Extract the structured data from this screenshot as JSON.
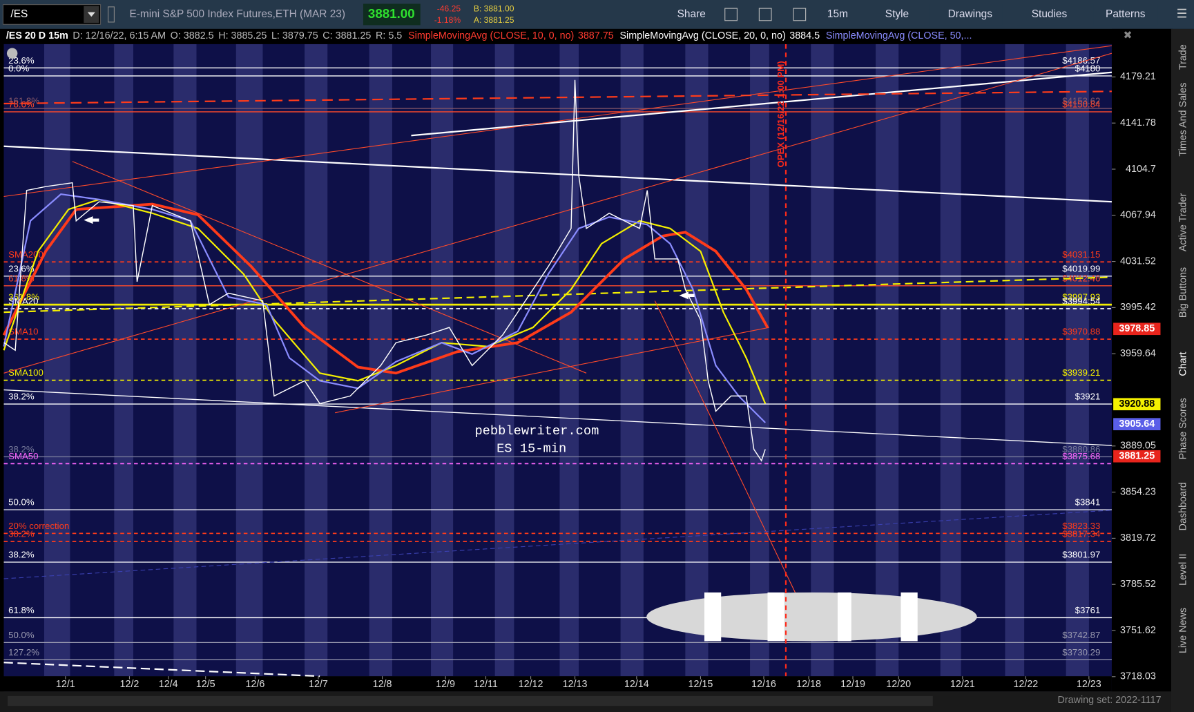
{
  "toolbar": {
    "symbol": "/ES",
    "description": "E-mini S&P 500 Index Futures,ETH (MAR 23)",
    "last": "3881.00",
    "change": "-46.25",
    "change_pct": "-1.18%",
    "bid": "B: 3881.00",
    "ask": "A: 3881.25",
    "buttons": [
      "Share",
      "15m",
      "Style",
      "Drawings",
      "Studies",
      "Patterns"
    ]
  },
  "info_bar": {
    "title": "/ES 20 D 15m",
    "fields": [
      "D: 12/16/22, 6:15 AM",
      "O: 3882.5",
      "H: 3885.25",
      "L: 3879.75",
      "C: 3881.25",
      "R: 5.5"
    ],
    "studies": [
      {
        "label": "SimpleMovingAvg (CLOSE, 10, 0, no)",
        "value": "3887.75",
        "color": "#ff3b30"
      },
      {
        "label": "SimpleMovingAvg (CLOSE, 20, 0, no)",
        "value": "3884.5",
        "color": "#ffffff"
      },
      {
        "label": "SimpleMovingAvg (CLOSE, 50,...",
        "color": "#8a8cff"
      }
    ]
  },
  "price_axis": [
    4179.21,
    4141.78,
    4104.7,
    4067.94,
    4031.52,
    3995.42,
    3959.64,
    3889.05,
    3854.23,
    3819.72,
    3785.52,
    3751.62,
    3718.03
  ],
  "price_tags": [
    {
      "value": 3978.85,
      "label": "3978.85",
      "color": "#e8241c",
      "text_color": "#ffffff"
    },
    {
      "value": 3920.88,
      "label": "3920.88",
      "color": "#f4f000",
      "text_color": "#000000"
    },
    {
      "value": 3905.64,
      "label": "3905.64",
      "color": "#5a5ee8",
      "text_color": "#ffffff"
    },
    {
      "value": 3881.25,
      "label": "3881.25",
      "color": "#e8241c",
      "text_color": "#ffffff"
    }
  ],
  "levels": [
    {
      "left": "23.6%",
      "right": "$4186.57",
      "value": 4186.57,
      "color": "#ffffff",
      "style": "solid"
    },
    {
      "left": "0.0%",
      "right": "$4180",
      "value": 4180,
      "color": "#ffffff",
      "style": "solid"
    },
    {
      "left": "161.8%",
      "right": "$4153.62",
      "value": 4153.62,
      "color": "#8a5a6a",
      "style": "solid"
    },
    {
      "left": "78.6%",
      "right": "$4150.84",
      "value": 4150.84,
      "color": "#ff4a2a",
      "style": "solid"
    },
    {
      "left": "SMA200",
      "right": "$4031.15",
      "value": 4031.15,
      "color": "#ff3b1a",
      "style": "dashed"
    },
    {
      "left": "23.6%",
      "right": "$4019.99",
      "value": 4019.99,
      "color": "#ffffff",
      "style": "solid"
    },
    {
      "left": "61.8%",
      "right": "$4012.46",
      "value": 4012.46,
      "color": "#ff4a2a",
      "style": "solid"
    },
    {
      "left": "361.8%",
      "right": "$3997.93",
      "value": 3997.93,
      "color": "#f4f000",
      "style": "solid"
    },
    {
      "left": "SMA20",
      "right": "$3994.54",
      "value": 3994.54,
      "color": "#ffffff",
      "style": "dashed"
    },
    {
      "left": "SMA10",
      "right": "$3970.88",
      "value": 3970.88,
      "color": "#ff3b1a",
      "style": "dashed"
    },
    {
      "left": "SMA100",
      "right": "$3939.21",
      "value": 3939.21,
      "color": "#f4f000",
      "style": "dashed"
    },
    {
      "left": "38.2%",
      "right": "$3921",
      "value": 3921,
      "color": "#ffffff",
      "style": "solid"
    },
    {
      "left": "38.2%",
      "right": "$3880.86",
      "value": 3880.86,
      "color": "#777a9a",
      "style": "solid"
    },
    {
      "left": "SMA50",
      "right": "$3875.68",
      "value": 3875.68,
      "color": "#ff66ff",
      "style": "dashed"
    },
    {
      "left": "50.0%",
      "right": "$3841",
      "value": 3841,
      "color": "#ffffff",
      "style": "solid"
    },
    {
      "left": "20% correction",
      "right": "$3823.33",
      "value": 3823.33,
      "color": "#ff3b1a",
      "style": "dashed"
    },
    {
      "left": "38.2%",
      "right": "$3817.34",
      "value": 3817.34,
      "color": "#ff3b1a",
      "style": "dashed"
    },
    {
      "left": "38.2%",
      "right": "$3801.97",
      "value": 3801.97,
      "color": "#ffffff",
      "style": "solid"
    },
    {
      "left": "61.8%",
      "right": "$3761",
      "value": 3761,
      "color": "#ffffff",
      "style": "solid"
    },
    {
      "left": "50.0%",
      "right": "$3742.87",
      "value": 3742.87,
      "color": "#9a9ab0",
      "style": "solid"
    },
    {
      "left": "127.2%",
      "right": "$3730.29",
      "value": 3730.29,
      "color": "#9a9ab0",
      "style": "solid"
    }
  ],
  "dates": [
    "12/1",
    "12/2",
    "12/4",
    "12/5",
    "12/6",
    "12/7",
    "12/8",
    "12/9",
    "12/11",
    "12/12",
    "12/13",
    "12/14",
    "12/15",
    "12/16",
    "12/18",
    "12/19",
    "12/20",
    "12/21",
    "12/22",
    "12/23"
  ],
  "opex": "OPEX (12/16/22 1:00 PM)",
  "watermark": [
    "pebblewriter.com",
    "ES 15-min"
  ],
  "side_tabs": [
    "Trade",
    "Times And Sales",
    "Active Trader",
    "Big Buttons",
    "Chart",
    "Phase Scores",
    "Dashboard",
    "Level II",
    "Live News"
  ],
  "footer": "Drawing set: 2022-1117"
}
